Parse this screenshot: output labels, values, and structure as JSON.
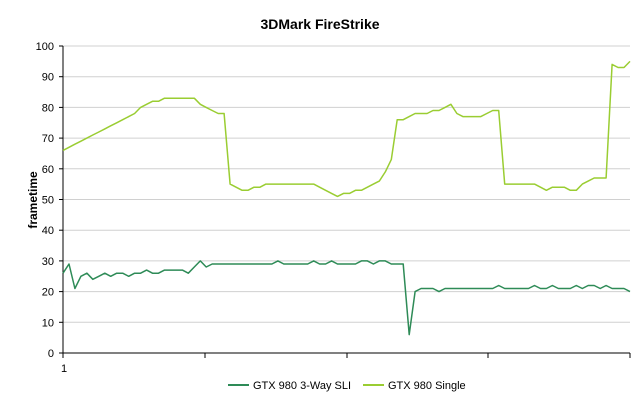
{
  "chart_data": {
    "type": "line",
    "title": "3DMark FireStrike",
    "xlabel": "",
    "ylabel": "frametime",
    "ylim": [
      0,
      100
    ],
    "yticks": [
      0,
      10,
      20,
      30,
      40,
      50,
      60,
      70,
      80,
      90,
      100
    ],
    "x_tick_label": "1",
    "grid": "horizontal",
    "legend_position": "bottom",
    "series": [
      {
        "name": "GTX 980 3-Way SLI",
        "color": "#2e8b57",
        "values": [
          26,
          29,
          21,
          25,
          26,
          24,
          25,
          26,
          25,
          26,
          26,
          25,
          26,
          26,
          27,
          26,
          26,
          27,
          27,
          27,
          27,
          26,
          28,
          30,
          28,
          29,
          29,
          29,
          29,
          29,
          29,
          29,
          29,
          29,
          29,
          29,
          30,
          29,
          29,
          29,
          29,
          29,
          30,
          29,
          29,
          30,
          29,
          29,
          29,
          29,
          30,
          30,
          29,
          30,
          30,
          29,
          29,
          29,
          6,
          20,
          21,
          21,
          21,
          20,
          21,
          21,
          21,
          21,
          21,
          21,
          21,
          21,
          21,
          22,
          21,
          21,
          21,
          21,
          21,
          22,
          21,
          21,
          22,
          21,
          21,
          21,
          22,
          21,
          22,
          22,
          21,
          22,
          21,
          21,
          21,
          20
        ]
      },
      {
        "name": "GTX 980 Single",
        "color": "#9acd32",
        "values": [
          66,
          67,
          68,
          69,
          70,
          71,
          72,
          73,
          74,
          75,
          76,
          77,
          78,
          80,
          81,
          82,
          82,
          83,
          83,
          83,
          83,
          83,
          83,
          81,
          80,
          79,
          78,
          78,
          55,
          54,
          53,
          53,
          54,
          54,
          55,
          55,
          55,
          55,
          55,
          55,
          55,
          55,
          55,
          54,
          53,
          52,
          51,
          52,
          52,
          53,
          53,
          54,
          55,
          56,
          59,
          63,
          76,
          76,
          77,
          78,
          78,
          78,
          79,
          79,
          80,
          81,
          78,
          77,
          77,
          77,
          77,
          78,
          79,
          79,
          55,
          55,
          55,
          55,
          55,
          55,
          54,
          53,
          54,
          54,
          54,
          53,
          53,
          55,
          56,
          57,
          57,
          57,
          94,
          93,
          93,
          95
        ]
      }
    ]
  }
}
